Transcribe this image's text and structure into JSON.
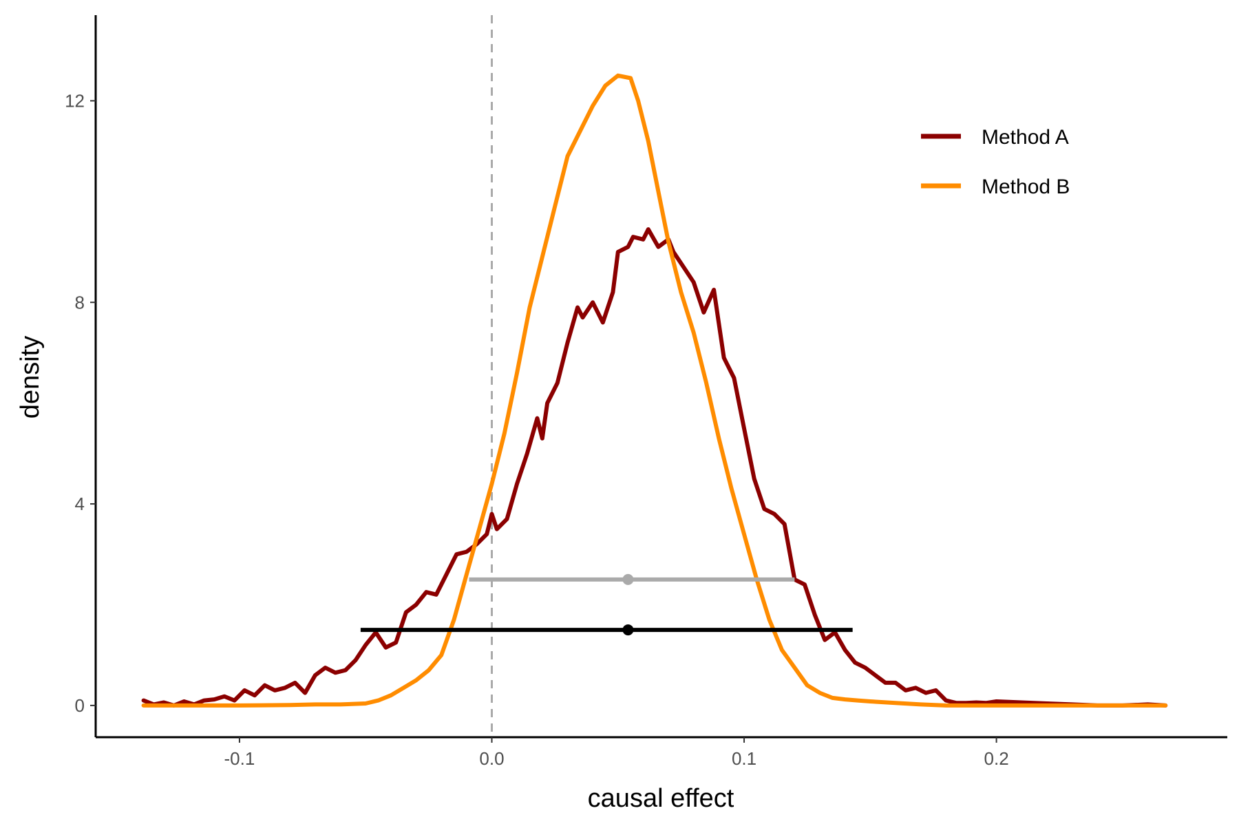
{
  "chart_data": {
    "type": "line",
    "subtype": "density",
    "xlabel": "causal effect",
    "ylabel": "density",
    "xlim": [
      -0.157,
      0.2915
    ],
    "ylim": [
      -0.63,
      13.7
    ],
    "x_ticks": [
      -0.1,
      0.0,
      0.1,
      0.2
    ],
    "x_tick_labels": [
      "-0.1",
      "0.0",
      "0.1",
      "0.2"
    ],
    "y_ticks": [
      0,
      4,
      8,
      12
    ],
    "y_tick_labels": [
      "0",
      "4",
      "8",
      "12"
    ],
    "grid": false,
    "legend_position": "top-right",
    "reference_line": {
      "x": 0.0,
      "style": "dashed",
      "color": "#aaaaaa"
    },
    "series": [
      {
        "name": "Method A",
        "color": "#8b0000",
        "x": [
          -0.138,
          -0.134,
          -0.13,
          -0.126,
          -0.122,
          -0.118,
          -0.114,
          -0.11,
          -0.106,
          -0.102,
          -0.098,
          -0.094,
          -0.09,
          -0.086,
          -0.082,
          -0.078,
          -0.074,
          -0.07,
          -0.066,
          -0.062,
          -0.058,
          -0.054,
          -0.05,
          -0.046,
          -0.042,
          -0.038,
          -0.034,
          -0.03,
          -0.026,
          -0.022,
          -0.018,
          -0.014,
          -0.01,
          -0.006,
          -0.002,
          0.0,
          0.002,
          0.006,
          0.01,
          0.014,
          0.018,
          0.02,
          0.022,
          0.026,
          0.03,
          0.034,
          0.036,
          0.04,
          0.044,
          0.048,
          0.05,
          0.054,
          0.056,
          0.06,
          0.062,
          0.066,
          0.07,
          0.072,
          0.076,
          0.08,
          0.084,
          0.088,
          0.092,
          0.096,
          0.1,
          0.104,
          0.108,
          0.112,
          0.116,
          0.12,
          0.124,
          0.128,
          0.132,
          0.136,
          0.14,
          0.144,
          0.148,
          0.152,
          0.156,
          0.16,
          0.164,
          0.168,
          0.172,
          0.176,
          0.18,
          0.184,
          0.188,
          0.192,
          0.196,
          0.2,
          0.21,
          0.22,
          0.23,
          0.24,
          0.25,
          0.26,
          0.267
        ],
        "y": [
          0.1,
          0.02,
          0.06,
          0.0,
          0.08,
          0.02,
          0.1,
          0.12,
          0.18,
          0.1,
          0.3,
          0.2,
          0.4,
          0.3,
          0.35,
          0.45,
          0.25,
          0.6,
          0.75,
          0.65,
          0.7,
          0.9,
          1.2,
          1.45,
          1.15,
          1.25,
          1.85,
          2.0,
          2.25,
          2.2,
          2.6,
          3.0,
          3.05,
          3.2,
          3.4,
          3.8,
          3.5,
          3.7,
          4.4,
          5.0,
          5.7,
          5.3,
          6.0,
          6.4,
          7.2,
          7.9,
          7.7,
          8.0,
          7.6,
          8.2,
          9.0,
          9.1,
          9.3,
          9.25,
          9.45,
          9.1,
          9.25,
          9.0,
          8.7,
          8.4,
          7.8,
          8.25,
          6.9,
          6.5,
          5.5,
          4.5,
          3.9,
          3.8,
          3.6,
          2.5,
          2.4,
          1.8,
          1.3,
          1.45,
          1.1,
          0.85,
          0.75,
          0.6,
          0.45,
          0.45,
          0.3,
          0.35,
          0.25,
          0.3,
          0.1,
          0.05,
          0.05,
          0.06,
          0.05,
          0.08,
          0.06,
          0.04,
          0.02,
          0.0,
          0.0,
          0.02,
          0.0
        ]
      },
      {
        "name": "Method B",
        "color": "#ff8c00",
        "x": [
          -0.138,
          -0.12,
          -0.1,
          -0.08,
          -0.07,
          -0.06,
          -0.05,
          -0.045,
          -0.04,
          -0.035,
          -0.03,
          -0.025,
          -0.02,
          -0.015,
          -0.01,
          -0.005,
          0.0,
          0.005,
          0.01,
          0.015,
          0.02,
          0.025,
          0.03,
          0.035,
          0.04,
          0.045,
          0.05,
          0.055,
          0.058,
          0.062,
          0.066,
          0.07,
          0.075,
          0.08,
          0.085,
          0.09,
          0.095,
          0.1,
          0.105,
          0.11,
          0.115,
          0.12,
          0.125,
          0.13,
          0.135,
          0.14,
          0.145,
          0.15,
          0.16,
          0.17,
          0.18,
          0.19,
          0.2,
          0.22,
          0.25,
          0.267
        ],
        "y": [
          0.0,
          0.0,
          0.0,
          0.01,
          0.02,
          0.02,
          0.04,
          0.1,
          0.2,
          0.35,
          0.5,
          0.7,
          1.0,
          1.7,
          2.6,
          3.5,
          4.4,
          5.4,
          6.6,
          7.9,
          8.9,
          9.9,
          10.9,
          11.4,
          11.9,
          12.3,
          12.5,
          12.45,
          12.0,
          11.2,
          10.2,
          9.2,
          8.2,
          7.4,
          6.4,
          5.3,
          4.3,
          3.4,
          2.5,
          1.7,
          1.1,
          0.75,
          0.4,
          0.25,
          0.15,
          0.12,
          0.1,
          0.08,
          0.05,
          0.02,
          0.0,
          0.0,
          0.0,
          0.0,
          0.0,
          0.0
        ]
      }
    ],
    "intervals": [
      {
        "color": "#aaaaaa",
        "low": -0.009,
        "high": 0.12,
        "point": 0.054,
        "y": 2.5
      },
      {
        "color": "#000000",
        "low": -0.052,
        "high": 0.143,
        "point": 0.054,
        "y": 1.5
      }
    ]
  }
}
